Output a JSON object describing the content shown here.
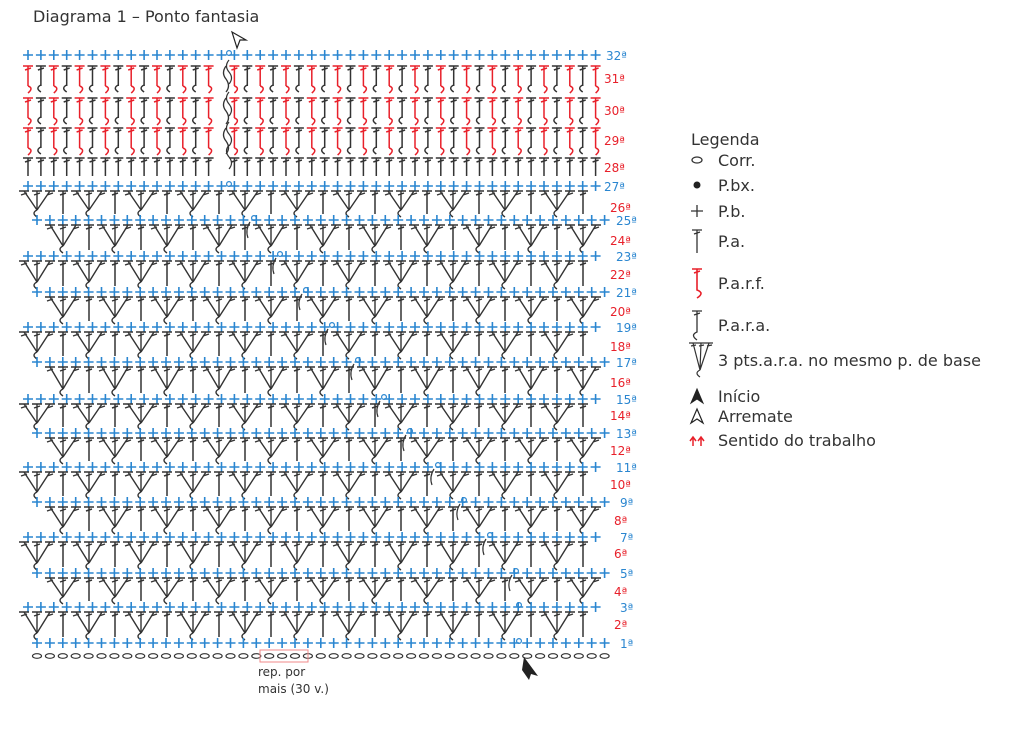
{
  "title": "Diagrama 1 – Ponto fantasia",
  "colors": {
    "red": "#e8202a",
    "blue": "#2a86d0",
    "dark": "#333333"
  },
  "rows": [
    {
      "label": "32ª",
      "color": "blue",
      "type": "pb"
    },
    {
      "label": "31ª",
      "color": "red",
      "type": "parf"
    },
    {
      "label": "30ª",
      "color": "red",
      "type": "parf"
    },
    {
      "label": "29ª",
      "color": "red",
      "type": "parf"
    },
    {
      "label": "28ª",
      "color": "red",
      "type": "pa"
    },
    {
      "label": "27ª",
      "color": "blue",
      "type": "pb"
    },
    {
      "label": "26ª",
      "color": "red",
      "type": "fan"
    },
    {
      "label": "25ª",
      "color": "blue",
      "type": "pb"
    },
    {
      "label": "24ª",
      "color": "red",
      "type": "fan"
    },
    {
      "label": "23ª",
      "color": "blue",
      "type": "pb"
    },
    {
      "label": "22ª",
      "color": "red",
      "type": "fan"
    },
    {
      "label": "21ª",
      "color": "blue",
      "type": "pb"
    },
    {
      "label": "20ª",
      "color": "red",
      "type": "fan"
    },
    {
      "label": "19ª",
      "color": "blue",
      "type": "pb"
    },
    {
      "label": "18ª",
      "color": "red",
      "type": "fan"
    },
    {
      "label": "17ª",
      "color": "blue",
      "type": "pb"
    },
    {
      "label": "16ª",
      "color": "red",
      "type": "fan"
    },
    {
      "label": "15ª",
      "color": "blue",
      "type": "pb"
    },
    {
      "label": "14ª",
      "color": "red",
      "type": "fan"
    },
    {
      "label": "13ª",
      "color": "blue",
      "type": "pb"
    },
    {
      "label": "12ª",
      "color": "red",
      "type": "fan"
    },
    {
      "label": "11ª",
      "color": "blue",
      "type": "pb"
    },
    {
      "label": "10ª",
      "color": "red",
      "type": "fan"
    },
    {
      "label": "9ª",
      "color": "blue",
      "type": "pb"
    },
    {
      "label": "8ª",
      "color": "red",
      "type": "fan"
    },
    {
      "label": "7ª",
      "color": "blue",
      "type": "pb"
    },
    {
      "label": "6ª",
      "color": "red",
      "type": "fan"
    },
    {
      "label": "5ª",
      "color": "blue",
      "type": "pb"
    },
    {
      "label": "4ª",
      "color": "red",
      "type": "fan"
    },
    {
      "label": "3ª",
      "color": "blue",
      "type": "pb"
    },
    {
      "label": "2ª",
      "color": "red",
      "type": "fan"
    },
    {
      "label": "1ª",
      "color": "blue",
      "type": "pb"
    }
  ],
  "repeat_note": {
    "line1": "rep. por",
    "line2": "mais (30 v.)"
  },
  "legend": {
    "title": "Legenda",
    "items": [
      {
        "icon": "chain-icon",
        "label": "Corr."
      },
      {
        "icon": "slip-stitch-icon",
        "label": "P.bx."
      },
      {
        "icon": "single-crochet-icon",
        "label": "P.b."
      },
      {
        "icon": "double-crochet-icon",
        "label": "P.a."
      },
      {
        "icon": "front-post-double-crochet-icon",
        "label": "P.a.r.f."
      },
      {
        "icon": "back-post-double-crochet-icon",
        "label": "P.a.r.a."
      },
      {
        "icon": "three-post-stitch-fan-icon",
        "label": "3 pts.a.r.a. no mesmo p. de base"
      },
      {
        "icon": "start-arrow-icon",
        "label": "Início"
      },
      {
        "icon": "finish-arrow-icon",
        "label": "Arremate"
      },
      {
        "icon": "work-direction-arrows-icon",
        "label": "Sentido do trabalho"
      }
    ]
  }
}
